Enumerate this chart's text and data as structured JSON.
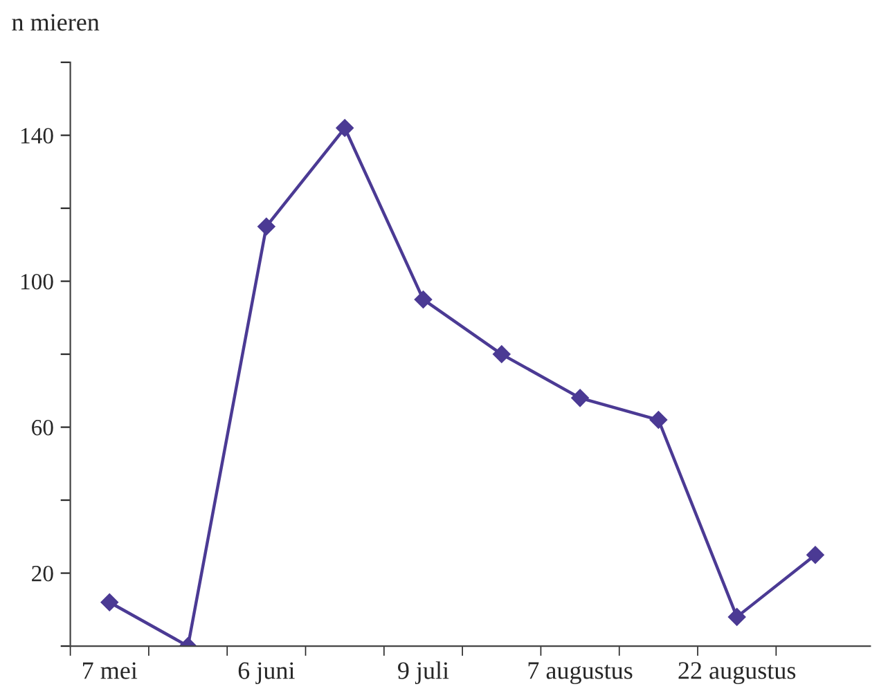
{
  "chart_data": {
    "type": "line",
    "ylabel": "n mieren",
    "categories": [
      "7 mei",
      null,
      "6 juni",
      null,
      "9 juli",
      null,
      "7 augustus",
      null,
      "22 augustus",
      null
    ],
    "series": [
      {
        "color": "#4b3a94",
        "values": [
          12,
          0,
          115,
          142,
          95,
          80,
          68,
          62,
          8,
          25
        ]
      }
    ],
    "ylim": [
      0,
      160
    ],
    "yticks": [
      {
        "value": 0,
        "label": null
      },
      20,
      {
        "value": 40,
        "label": null
      },
      60,
      {
        "value": 80,
        "label": null
      },
      100,
      {
        "value": 120,
        "label": null
      },
      140,
      {
        "value": 160,
        "label": null
      }
    ],
    "marker": "diamond",
    "line_style": "solid",
    "grid": false
  }
}
